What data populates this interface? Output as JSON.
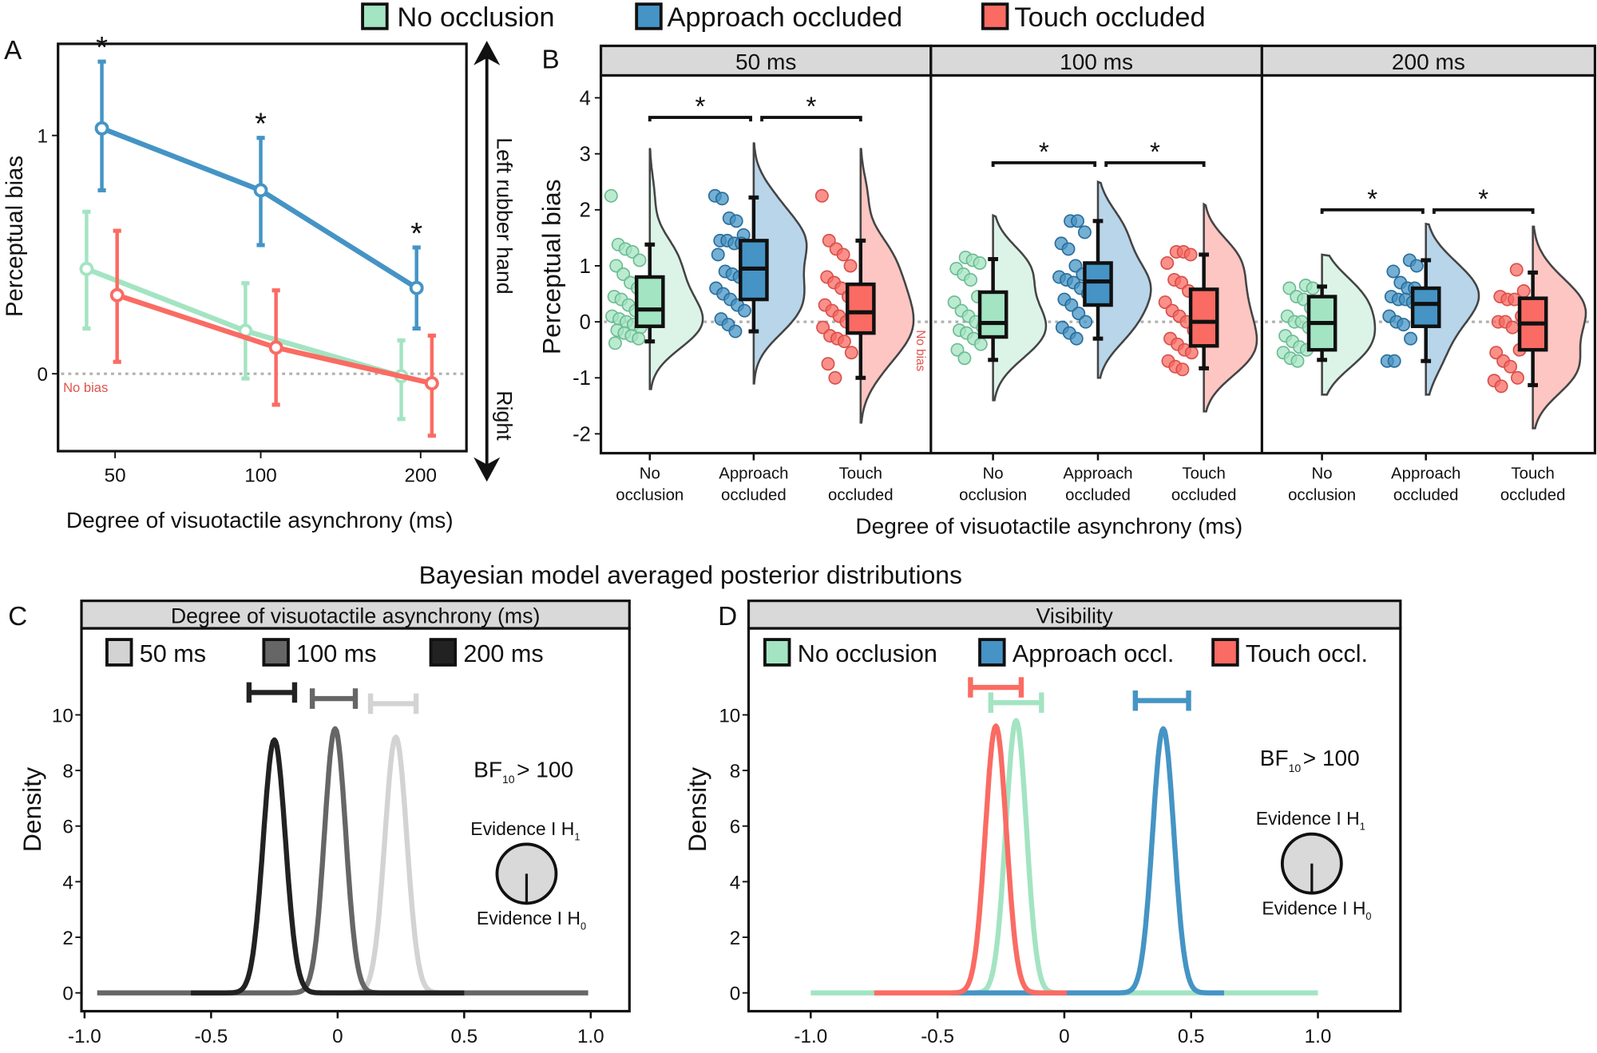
{
  "legend": {
    "items": [
      {
        "label": "No occlusion",
        "color": "#a3e4c2"
      },
      {
        "label": "Approach occluded",
        "color": "#4594c5"
      },
      {
        "label": "Touch occluded",
        "color": "#fa6b63"
      }
    ]
  },
  "chart_data": [
    {
      "panel": "A",
      "type": "line",
      "xlabel": "Degree of visuotactile asynchrony (ms)",
      "ylabel": "Perceptual bias",
      "categories": [
        "50",
        "100",
        "200"
      ],
      "yticks": [
        "0",
        "1"
      ],
      "ytick_values": [
        0,
        1
      ],
      "ylim": [
        -0.33,
        1.38
      ],
      "reference_label": "No bias",
      "arrow_labels": {
        "top": "Left rubber hand",
        "bottom": "Right"
      },
      "series": [
        {
          "name": "No occlusion",
          "color": "#a3e4c2",
          "values": [
            0.44,
            0.18,
            -0.01
          ],
          "ci_low": [
            0.19,
            -0.02,
            -0.19
          ],
          "ci_high": [
            0.68,
            0.38,
            0.14
          ]
        },
        {
          "name": "Approach occluded",
          "color": "#4594c5",
          "values": [
            1.03,
            0.77,
            0.36
          ],
          "ci_low": [
            0.77,
            0.54,
            0.19
          ],
          "ci_high": [
            1.31,
            0.99,
            0.53
          ]
        },
        {
          "name": "Touch occluded",
          "color": "#fa6b63",
          "values": [
            0.33,
            0.11,
            -0.04
          ],
          "ci_low": [
            0.05,
            -0.13,
            -0.26
          ],
          "ci_high": [
            0.6,
            0.35,
            0.16
          ]
        }
      ],
      "significance_marker": "*",
      "significant": [
        true,
        true,
        true
      ]
    },
    {
      "panel": "B",
      "type": "box",
      "xlabel": "Degree of visuotactile asynchrony (ms)",
      "ylabel": "Perceptual bias",
      "yticks": [
        4,
        3,
        2,
        1,
        0,
        -1,
        -2
      ],
      "ylim": [
        -2.3,
        4.4
      ],
      "reference_label": "No bias",
      "categories": [
        [
          "No",
          "occlusion"
        ],
        [
          "Approach",
          "occluded"
        ],
        [
          "Touch",
          "occluded"
        ]
      ],
      "facets": [
        {
          "label": "50 ms",
          "groups": [
            {
              "name": "No occlusion",
              "box": {
                "median": 0.22,
                "q1": -0.08,
                "q3": 0.8,
                "low": -0.35,
                "high": 1.38
              },
              "violin_range": [
                -1.2,
                3.1
              ],
              "points": [
                2.25,
                1.38,
                1.3,
                1.25,
                1.1,
                1.0,
                0.85,
                0.7,
                0.6,
                0.45,
                0.4,
                0.3,
                0.2,
                0.1,
                0.05,
                0,
                -0.05,
                -0.1,
                -0.15,
                -0.2,
                -0.25,
                -0.3,
                -0.38
              ]
            },
            {
              "name": "Approach occluded",
              "box": {
                "median": 0.95,
                "q1": 0.4,
                "q3": 1.45,
                "low": -0.17,
                "high": 2.22
              },
              "violin_range": [
                -1.1,
                3.2
              ],
              "points": [
                2.25,
                2.2,
                1.85,
                1.8,
                1.55,
                1.45,
                1.45,
                1.4,
                1.4,
                1.2,
                0.9,
                0.85,
                0.8,
                0.6,
                0.5,
                0.4,
                0.3,
                0.2,
                0.05,
                -0.05,
                -0.17
              ]
            },
            {
              "name": "Touch occluded",
              "box": {
                "median": 0.17,
                "q1": -0.2,
                "q3": 0.67,
                "low": -1.0,
                "high": 1.45
              },
              "violin_range": [
                -1.8,
                3.1
              ],
              "points": [
                2.25,
                1.45,
                1.3,
                1.2,
                1.0,
                0.8,
                0.7,
                0.6,
                0.45,
                0.3,
                0.2,
                0.1,
                0,
                -0.1,
                -0.25,
                -0.3,
                -0.35,
                -0.55,
                -0.75,
                -1.0
              ]
            }
          ],
          "significance": [
            {
              "from": 0,
              "to": 1,
              "label": "*",
              "y": 3.65
            },
            {
              "from": 1,
              "to": 2,
              "label": "*",
              "y": 3.65
            }
          ]
        },
        {
          "label": "100 ms",
          "groups": [
            {
              "name": "No occlusion",
              "box": {
                "median": -0.02,
                "q1": -0.27,
                "q3": 0.53,
                "low": -0.68,
                "high": 1.12
              },
              "violin_range": [
                -1.4,
                1.9
              ],
              "points": [
                1.15,
                1.1,
                1.05,
                0.95,
                0.85,
                0.75,
                0.45,
                0.35,
                0.2,
                0.1,
                0,
                -0.1,
                -0.15,
                -0.2,
                -0.3,
                -0.4,
                -0.5,
                -0.65
              ]
            },
            {
              "name": "Approach occluded",
              "box": {
                "median": 0.72,
                "q1": 0.3,
                "q3": 1.05,
                "low": -0.3,
                "high": 1.8
              },
              "violin_range": [
                -1.0,
                2.5
              ],
              "points": [
                1.8,
                1.8,
                1.6,
                1.4,
                1.3,
                1.0,
                0.85,
                0.8,
                0.75,
                0.7,
                0.6,
                0.5,
                0.4,
                0.3,
                0.15,
                0.0,
                -0.1,
                -0.2,
                -0.3
              ]
            },
            {
              "name": "Touch occluded",
              "box": {
                "median": 0.0,
                "q1": -0.43,
                "q3": 0.58,
                "low": -0.83,
                "high": 1.2
              },
              "violin_range": [
                -1.6,
                2.1
              ],
              "points": [
                1.25,
                1.25,
                1.2,
                1.05,
                0.75,
                0.7,
                0.55,
                0.35,
                0.2,
                0.1,
                0,
                -0.15,
                -0.3,
                -0.4,
                -0.5,
                -0.55,
                -0.7,
                -0.8,
                -0.85
              ]
            }
          ],
          "significance": [
            {
              "from": 0,
              "to": 1,
              "label": "*",
              "y": 2.84
            },
            {
              "from": 1,
              "to": 2,
              "label": "*",
              "y": 2.84
            }
          ]
        },
        {
          "label": "200 ms",
          "groups": [
            {
              "name": "No occlusion",
              "box": {
                "median": -0.02,
                "q1": -0.5,
                "q3": 0.45,
                "low": -0.68,
                "high": 0.63
              },
              "violin_range": [
                -1.3,
                1.2
              ],
              "points": [
                0.65,
                0.6,
                0.6,
                0.45,
                0.4,
                0.25,
                0.1,
                0,
                0,
                -0.1,
                -0.25,
                -0.35,
                -0.45,
                -0.5,
                -0.55,
                -0.65,
                -0.7
              ]
            },
            {
              "name": "Approach occluded",
              "box": {
                "median": 0.32,
                "q1": -0.08,
                "q3": 0.6,
                "low": -0.7,
                "high": 1.1
              },
              "violin_range": [
                -1.3,
                1.75
              ],
              "points": [
                1.1,
                1.0,
                0.9,
                0.7,
                0.6,
                0.6,
                0.45,
                0.4,
                0.4,
                0.35,
                0.1,
                0,
                -0.05,
                -0.3,
                -0.7,
                -0.7
              ]
            },
            {
              "name": "Touch occluded",
              "box": {
                "median": -0.03,
                "q1": -0.5,
                "q3": 0.42,
                "low": -1.13,
                "high": 0.88
              },
              "violin_range": [
                -1.9,
                1.7
              ],
              "points": [
                0.93,
                0.55,
                0.45,
                0.4,
                0.4,
                0.1,
                0,
                0,
                -0.1,
                -0.5,
                -0.55,
                -0.7,
                -0.8,
                -1.0,
                -1.05,
                -1.15
              ]
            }
          ],
          "significance": [
            {
              "from": 0,
              "to": 1,
              "label": "*",
              "y": 2.0
            },
            {
              "from": 1,
              "to": 2,
              "label": "*",
              "y": 2.0
            }
          ]
        }
      ]
    },
    {
      "panel": "C",
      "type": "line",
      "title": "Bayesian model averaged posterior distributions",
      "strip": "Degree of visuotactile asynchrony (ms)",
      "ylabel": "Density",
      "xticks": [
        "-1.0",
        "-0.5",
        "0",
        "0.5",
        "1.0"
      ],
      "xtick_values": [
        -1,
        -0.5,
        0,
        0.5,
        1
      ],
      "yticks": [
        0,
        2,
        4,
        6,
        8,
        10
      ],
      "xlim": [
        -1.0,
        1.0
      ],
      "bf_text": {
        "main": "BF",
        "sub": "10",
        "rest": "> 100"
      },
      "evidence_h1": {
        "main": "Evidence I H",
        "sub": "1"
      },
      "evidence_h0": {
        "main": "Evidence I H",
        "sub": "0"
      },
      "series": [
        {
          "name": "50 ms",
          "color": "#d3d3d3",
          "mean": 0.23,
          "peak": 9.2,
          "ci": [
            0.13,
            0.31
          ],
          "range": [
            0.0,
            0.45
          ]
        },
        {
          "name": "100 ms",
          "color": "#666666",
          "mean": -0.01,
          "peak": 9.5,
          "ci": [
            -0.1,
            0.07
          ],
          "range": [
            -0.95,
            0.99
          ]
        },
        {
          "name": "200 ms",
          "color": "#222222",
          "mean": -0.25,
          "peak": 9.1,
          "ci": [
            -0.35,
            -0.17
          ],
          "range": [
            -0.58,
            0.5
          ]
        }
      ]
    },
    {
      "panel": "D",
      "type": "line",
      "strip": "Visibility",
      "ylabel": "Density",
      "xticks": [
        "-1.0",
        "-0.5",
        "0",
        "0.5",
        "1.0"
      ],
      "xtick_values": [
        -1,
        -0.5,
        0,
        0.5,
        1
      ],
      "yticks": [
        0,
        2,
        4,
        6,
        8,
        10
      ],
      "xlim": [
        -1.0,
        1.0
      ],
      "bf_text": {
        "main": "BF",
        "sub": "10",
        "rest": "> 100"
      },
      "evidence_h1": {
        "main": "Evidence I H",
        "sub": "1"
      },
      "evidence_h0": {
        "main": "Evidence I H",
        "sub": "0"
      },
      "series": [
        {
          "name": "No occlusion",
          "color": "#a3e4c2",
          "mean": -0.19,
          "peak": 9.8,
          "ci": [
            -0.29,
            -0.09
          ],
          "range": [
            -1.0,
            1.0
          ]
        },
        {
          "name": "Approach occl.",
          "color": "#4594c5",
          "mean": 0.39,
          "peak": 9.5,
          "ci": [
            0.28,
            0.49
          ],
          "range": [
            -0.45,
            0.63
          ]
        },
        {
          "name": "Touch occl.",
          "color": "#fa6b63",
          "mean": -0.27,
          "peak": 9.6,
          "ci": [
            -0.37,
            -0.17
          ],
          "range": [
            -0.75,
            0.01
          ]
        }
      ]
    }
  ]
}
